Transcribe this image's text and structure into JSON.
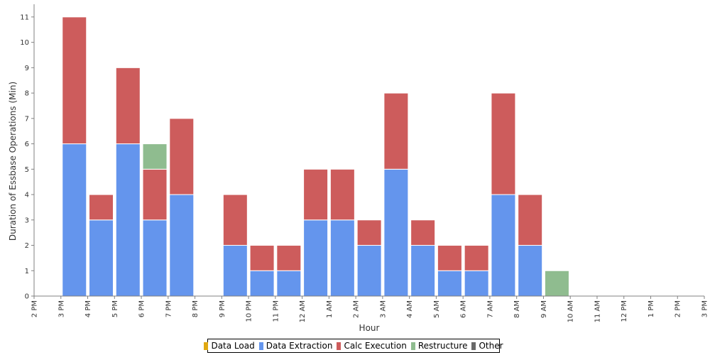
{
  "chart_data": {
    "type": "bar",
    "stacked": true,
    "xlabel": "Hour",
    "ylabel": "Duration of Essbase Operations (Min)",
    "ylim": [
      0,
      11.5
    ],
    "yticks": [
      0,
      1,
      2,
      3,
      4,
      5,
      6,
      7,
      8,
      9,
      10,
      11
    ],
    "categories": [
      "2 PM",
      "3 PM",
      "4 PM",
      "5 PM",
      "6 PM",
      "7 PM",
      "8 PM",
      "9 PM",
      "10 PM",
      "11 PM",
      "12 AM",
      "1 AM",
      "2 AM",
      "3 AM",
      "4 AM",
      "5 AM",
      "6 AM",
      "7 AM",
      "8 AM",
      "9 AM",
      "10 AM",
      "11 AM",
      "12 PM",
      "1 PM",
      "2 PM",
      "3 PM"
    ],
    "series": [
      {
        "name": "Data Load",
        "color": "#e0a812",
        "values": [
          0,
          0,
          0,
          0,
          0,
          0,
          0,
          0,
          0,
          0,
          0,
          0,
          0,
          0,
          0,
          0,
          0,
          0,
          0,
          0,
          0,
          0,
          0,
          0,
          0,
          0
        ]
      },
      {
        "name": "Data Extraction",
        "color": "#6495ed",
        "values": [
          0,
          6,
          3,
          6,
          3,
          4,
          0,
          2,
          1,
          1,
          3,
          3,
          2,
          5,
          2,
          1,
          1,
          4,
          2,
          0,
          0,
          0,
          0,
          0,
          0,
          0
        ]
      },
      {
        "name": "Calc Execution",
        "color": "#cd5c5c",
        "values": [
          0,
          5,
          1,
          3,
          2,
          3,
          0,
          2,
          1,
          1,
          2,
          2,
          1,
          3,
          1,
          1,
          1,
          4,
          2,
          0,
          0,
          0,
          0,
          0,
          0,
          0
        ]
      },
      {
        "name": "Restructure",
        "color": "#8fbc8f",
        "values": [
          0,
          0,
          0,
          0,
          1,
          0,
          0,
          0,
          0,
          0,
          0,
          0,
          0,
          0,
          0,
          0,
          0,
          0,
          0,
          1,
          0,
          0,
          0,
          0,
          0,
          0
        ]
      },
      {
        "name": "Other",
        "color": "#696969",
        "values": [
          0,
          0,
          0,
          0,
          0,
          0,
          0,
          0,
          0,
          0,
          0,
          0,
          0,
          0,
          0,
          0,
          0,
          0,
          0,
          0,
          0,
          0,
          0,
          0,
          0,
          0
        ]
      }
    ],
    "grid": false,
    "legend_position": "bottom"
  }
}
